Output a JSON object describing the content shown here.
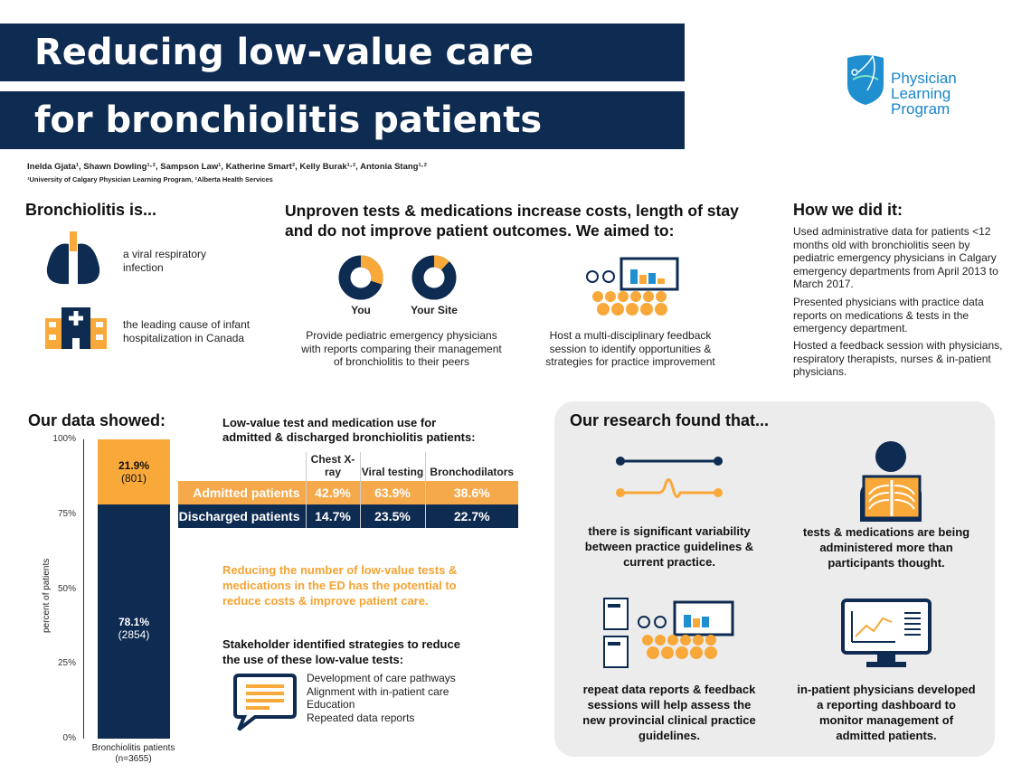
{
  "title": {
    "line1": "Reducing low-value care",
    "line2": "for bronchiolitis patients"
  },
  "authors": "Inelda Gjata¹, Shawn Dowling¹·², Sampson Law¹, Katherine Smart², Kelly Burak¹·², Antonia Stang¹·²",
  "affiliations": "¹University of Calgary Physician Learning Program, ²Alberta Health Services",
  "logo": {
    "line1": "Physician",
    "line2": "Learning",
    "line3": "Program"
  },
  "bronchiolitis": {
    "heading": "Bronchiolitis is...",
    "item1": "a viral respiratory infection",
    "item2": "the leading cause of infant hospitalization in Canada"
  },
  "aims": {
    "heading": "Unproven tests & medications increase costs, length of stay and do not improve patient outcomes. We aimed to:",
    "donut_you": "You",
    "donut_site": "Your Site",
    "donut_you_fraction": 0.3,
    "donut_site_fraction": 0.12,
    "aim1": "Provide pediatric emergency physicians with reports comparing their management of bronchiolitis to their peers",
    "aim2": "Host a multi-disciplinary feedback session to identify opportunities & strategies for practice improvement"
  },
  "how": {
    "heading": "How we did it:",
    "p1": "Used administrative data for patients <12 months old with bronchiolitis seen by pediatric emergency physicians in Calgary emergency departments from April 2013 to March 2017.",
    "p2": "Presented physicians with practice data reports on medications & tests in the emergency department.",
    "p3": "Hosted a feedback session with physicians, respiratory therapists, nurses & in-patient physicians."
  },
  "data_showed": {
    "heading": "Our data showed:"
  },
  "chart_data": {
    "type": "bar",
    "stacked": true,
    "categories": [
      "Bronchiolitis patients\n(n=3655)"
    ],
    "xlabel": "Bronchiolitis patients",
    "xsublabel": "(n=3655)",
    "ylabel": "percent of patients",
    "ylim": [
      0,
      100
    ],
    "yticks": [
      "0%",
      "25%",
      "50%",
      "75%",
      "100%"
    ],
    "series": [
      {
        "values": [
          78.1
        ],
        "label": "78.1%",
        "count": "(2854)",
        "color": "#0e2b52"
      },
      {
        "values": [
          21.9
        ],
        "label": "21.9%",
        "count": "(801)",
        "color": "#f9a83a"
      }
    ]
  },
  "table": {
    "heading": "Low-value test and medication use for admitted & discharged bronchiolitis patients:",
    "columns": [
      "Chest X-ray",
      "Viral testing",
      "Bronchodilators"
    ],
    "rows": [
      {
        "label": "Admitted patients",
        "values": [
          "42.9%",
          "63.9%",
          "38.6%"
        ]
      },
      {
        "label": "Discharged patients",
        "values": [
          "14.7%",
          "23.5%",
          "22.7%"
        ]
      }
    ]
  },
  "highlight": "Reducing the number of low-value tests & medications in the ED has the potential to reduce costs & improve patient care.",
  "strategies": {
    "heading": "Stakeholder identified strategies to reduce the use of these low-value tests:",
    "items": [
      "Development of care pathways",
      "Alignment with in-patient care",
      "Education",
      "Repeated data reports"
    ]
  },
  "research": {
    "heading": "Our research found that...",
    "f1": "there is significant variability between practice guidelines & current practice.",
    "f2": "tests & medications are being administered more than participants thought.",
    "f3": "repeat data reports & feedback sessions will help assess the new provincial clinical practice guidelines.",
    "f4": "in-patient physicians developed a reporting dashboard to monitor management of admitted patients."
  },
  "colors": {
    "navy": "#0e2b52",
    "orange": "#f9a83a",
    "panel": "#ececec"
  }
}
